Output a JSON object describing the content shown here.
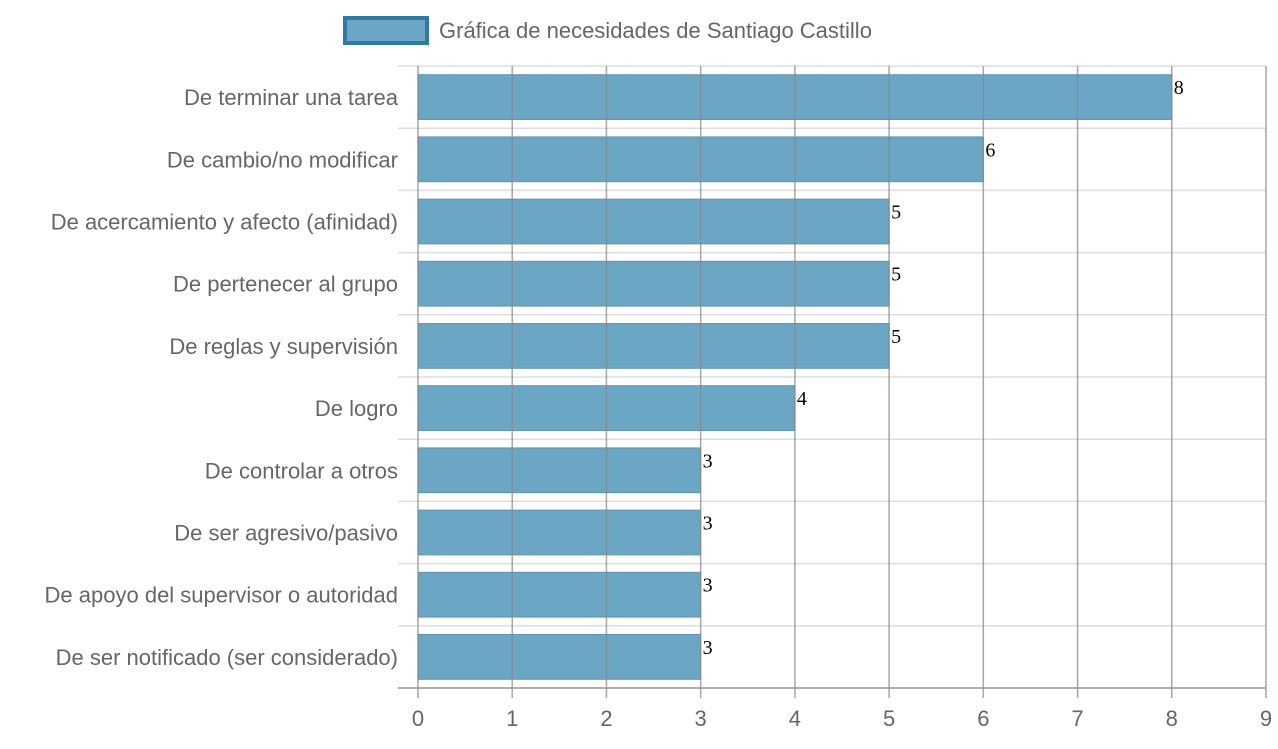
{
  "chart_data": {
    "type": "bar",
    "orientation": "horizontal",
    "categories": [
      "De terminar una tarea",
      "De cambio/no modificar",
      "De acercamiento y afecto (afinidad)",
      "De pertenecer al grupo",
      "De reglas y supervisión",
      "De logro",
      "De controlar a otros",
      "De ser agresivo/pasivo",
      "De apoyo del supervisor o autoridad",
      "De ser notificado (ser considerado)"
    ],
    "series": [
      {
        "name": "Gráfica de necesidades de Santiago Castillo",
        "values": [
          8,
          6,
          5,
          5,
          5,
          4,
          3,
          3,
          3,
          3
        ]
      }
    ],
    "xlim": [
      0,
      9
    ],
    "x_ticks": [
      "0",
      "1",
      "2",
      "3",
      "4",
      "5",
      "6",
      "7",
      "8",
      "9"
    ],
    "grid": true,
    "legend_position": "top",
    "data_labels": true,
    "colors": {
      "bar_fill": "#6ca6c5",
      "bar_stroke": "#5f95b3",
      "legend_fill": "#6ca6c5",
      "legend_border": "#2e7aa0",
      "grid": "#888888",
      "grid_light": "#dddddd",
      "axis": "#999999"
    }
  }
}
